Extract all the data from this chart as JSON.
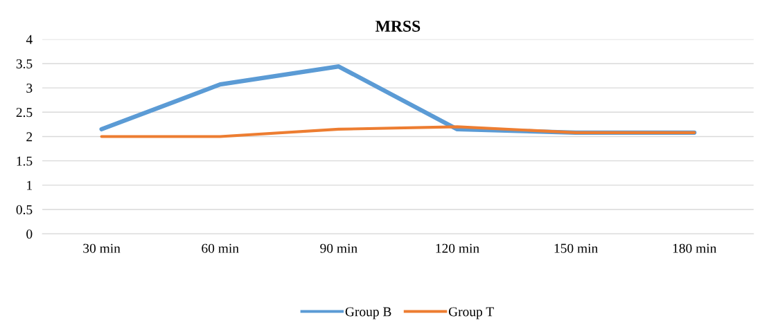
{
  "chart_data": {
    "type": "line",
    "title": "MRSS",
    "categories": [
      "30 min",
      "60 min",
      "90 min",
      "120 min",
      "150 min",
      "180 min"
    ],
    "series": [
      {
        "name": "Group B",
        "color": "#5b9bd5",
        "values": [
          2.15,
          3.07,
          3.44,
          2.15,
          2.08,
          2.08
        ]
      },
      {
        "name": "Group T",
        "color": "#ed7d31",
        "values": [
          2.0,
          2.0,
          2.15,
          2.2,
          2.08,
          2.08
        ]
      }
    ],
    "ylim": [
      0,
      4
    ],
    "yticks": [
      0,
      0.5,
      1,
      1.5,
      2,
      2.5,
      3,
      3.5,
      4
    ],
    "grid": "y",
    "legend": "bottom",
    "marker": "none",
    "line_style": "solid"
  }
}
